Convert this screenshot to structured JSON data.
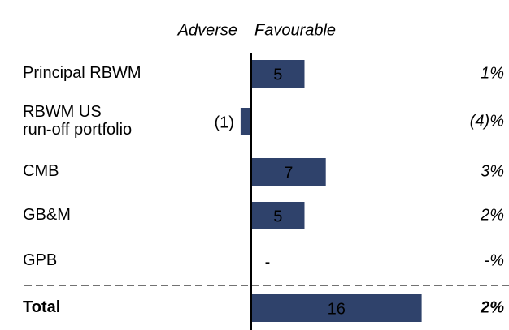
{
  "chart_data": {
    "type": "bar",
    "orientation": "horizontal",
    "column_headers": [
      "Adverse",
      "Favourable"
    ],
    "categories": [
      [
        "Principal RBWM"
      ],
      [
        "RBWM US",
        "run-off portfolio"
      ],
      [
        "CMB"
      ],
      [
        "GB&M"
      ],
      [
        "GPB"
      ],
      [
        "Total"
      ]
    ],
    "values": [
      5,
      -1,
      7,
      5,
      0,
      16
    ],
    "value_labels": [
      "5",
      "(1)",
      "7",
      "5",
      "-",
      "16"
    ],
    "percent_labels": [
      "1%",
      "(4)%",
      "3%",
      "2%",
      "-%",
      "2%"
    ],
    "color": "#2f426b"
  }
}
